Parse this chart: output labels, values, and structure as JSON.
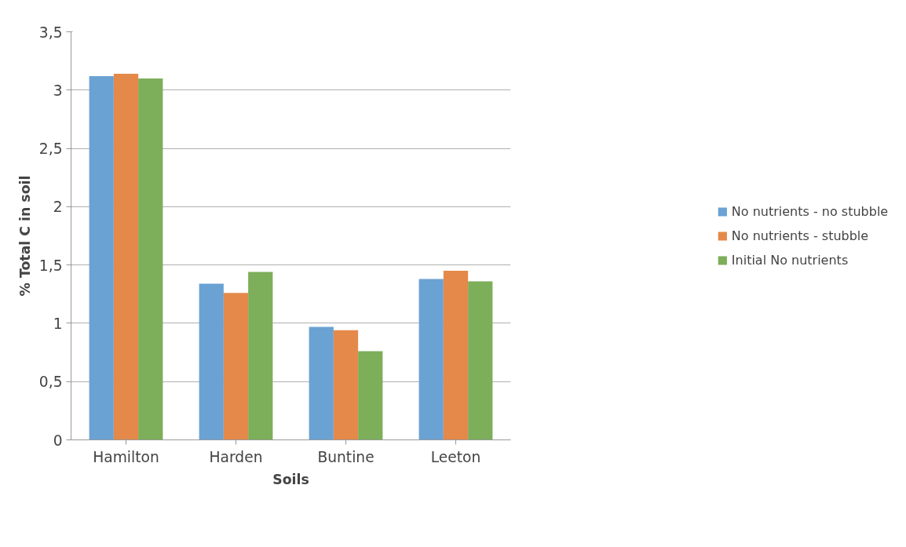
{
  "chart_data": {
    "type": "bar",
    "xlabel": "Soils",
    "ylabel": "% Total C in soil",
    "categories": [
      "Hamilton",
      "Harden",
      "Buntine",
      "Leeton"
    ],
    "series": [
      {
        "name": "No nutrients - no stubble",
        "color": "#6aa2d3",
        "values": [
          3.12,
          1.34,
          0.97,
          1.38
        ]
      },
      {
        "name": "No nutrients - stubble",
        "color": "#e4894a",
        "values": [
          3.14,
          1.26,
          0.94,
          1.45
        ]
      },
      {
        "name": "Initial No nutrients",
        "color": "#7dae5a",
        "values": [
          3.1,
          1.44,
          0.76,
          1.36
        ]
      }
    ],
    "ylim": [
      0,
      3.5
    ],
    "yticks": [
      0,
      {
        "value": 0.5,
        "label": "0,5"
      },
      1,
      {
        "value": 1.5,
        "label": "1,5"
      },
      2,
      {
        "value": 2.5,
        "label": "2,5"
      },
      3,
      {
        "value": 3.5,
        "label": "3,5"
      }
    ],
    "grid": "y",
    "legend": "right"
  }
}
